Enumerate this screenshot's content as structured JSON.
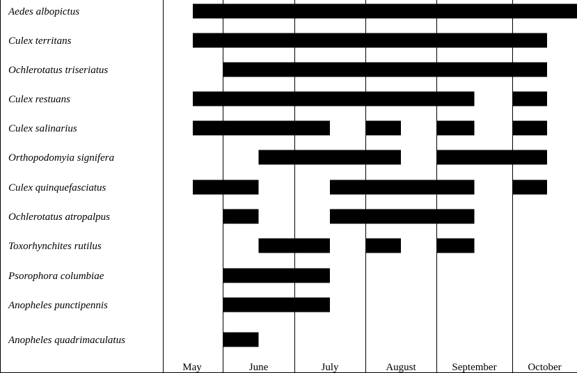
{
  "chart_data": {
    "type": "bar",
    "months": [
      "May",
      "June",
      "July",
      "August",
      "September",
      "October"
    ],
    "species": [
      {
        "name": "Aedes albopictus",
        "periods": [
          [
            0.5,
            6.0
          ]
        ]
      },
      {
        "name": "Culex territans",
        "periods": [
          [
            0.5,
            5.5
          ]
        ]
      },
      {
        "name": "Ochlerotatus triseriatus",
        "periods": [
          [
            1.0,
            5.5
          ]
        ]
      },
      {
        "name": "Culex restuans",
        "periods": [
          [
            0.5,
            4.5
          ],
          [
            5.0,
            5.5
          ]
        ]
      },
      {
        "name": "Culex salinarius",
        "periods": [
          [
            0.5,
            2.5
          ],
          [
            3.0,
            3.5
          ],
          [
            4.0,
            4.5
          ],
          [
            5.0,
            5.5
          ]
        ]
      },
      {
        "name": "Orthopodomyia signifera",
        "periods": [
          [
            1.5,
            3.5
          ],
          [
            4.0,
            5.5
          ]
        ]
      },
      {
        "name": "Culex quinquefasciatus",
        "periods": [
          [
            0.5,
            1.5
          ],
          [
            2.5,
            4.5
          ],
          [
            5.0,
            5.5
          ]
        ]
      },
      {
        "name": "Ochlerotatus atropalpus",
        "periods": [
          [
            1.0,
            1.5
          ],
          [
            2.5,
            4.5
          ]
        ]
      },
      {
        "name": "Toxorhynchites rutilus",
        "periods": [
          [
            1.5,
            2.5
          ],
          [
            3.0,
            3.5
          ],
          [
            4.0,
            4.5
          ]
        ]
      },
      {
        "name": "Psorophora columbiae",
        "periods": [
          [
            1.0,
            2.5
          ]
        ]
      },
      {
        "name": "Anopheles punctipennis",
        "periods": [
          [
            1.0,
            2.5
          ]
        ]
      },
      {
        "name": "Anopheles quadrimaculatus",
        "periods": [
          [
            1.0,
            1.5
          ]
        ]
      }
    ]
  }
}
